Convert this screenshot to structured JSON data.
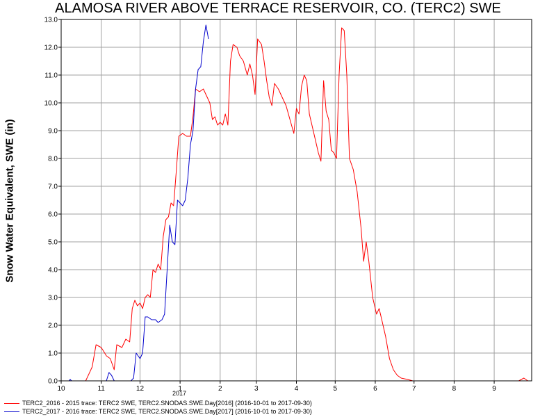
{
  "chart_data": {
    "type": "line",
    "title": "ALAMOSA RIVER ABOVE TERRACE RESERVOIR, CO. (TERC2) SWE",
    "ylabel": "Snow Water Equivalent, SWE (in)",
    "xlabel": "",
    "ylim": [
      0,
      13
    ],
    "yticks": [
      "0.0",
      "1.0",
      "2.0",
      "3.0",
      "4.0",
      "5.0",
      "6.0",
      "7.0",
      "8.0",
      "9.0",
      "10.0",
      "11.0",
      "12.0",
      "13.0"
    ],
    "xticks": [
      {
        "label": "10",
        "month_index": 0
      },
      {
        "label": "11",
        "month_index": 1
      },
      {
        "label": "12",
        "month_index": 2
      },
      {
        "label": "1",
        "month_index": 3
      },
      {
        "label": "2",
        "month_index": 4
      },
      {
        "label": "3",
        "month_index": 5
      },
      {
        "label": "4",
        "month_index": 6
      },
      {
        "label": "5",
        "month_index": 7
      },
      {
        "label": "6",
        "month_index": 8
      },
      {
        "label": "7",
        "month_index": 9
      },
      {
        "label": "8",
        "month_index": 10
      },
      {
        "label": "9",
        "month_index": 11
      }
    ],
    "year_label": "2017",
    "grid": true,
    "series": [
      {
        "name": "TERC2_2016 - 2015 trace: TERC2 SWE, TERC2.SNODAS.SWE.Day[2016] (2016-10-01 to 2017-09-30)",
        "color": "#ff0000",
        "points": [
          [
            "2016-10-01",
            0
          ],
          [
            "2016-10-20",
            0
          ],
          [
            "2016-10-25",
            0.5
          ],
          [
            "2016-10-28",
            1.3
          ],
          [
            "2016-11-01",
            1.2
          ],
          [
            "2016-11-05",
            0.9
          ],
          [
            "2016-11-08",
            0.8
          ],
          [
            "2016-11-11",
            0.4
          ],
          [
            "2016-11-13",
            1.3
          ],
          [
            "2016-11-17",
            1.2
          ],
          [
            "2016-11-20",
            1.5
          ],
          [
            "2016-11-23",
            1.4
          ],
          [
            "2016-11-25",
            2.6
          ],
          [
            "2016-11-27",
            2.9
          ],
          [
            "2016-11-29",
            2.7
          ],
          [
            "2016-12-01",
            2.8
          ],
          [
            "2016-12-03",
            2.6
          ],
          [
            "2016-12-05",
            3.0
          ],
          [
            "2016-12-07",
            3.1
          ],
          [
            "2016-12-09",
            3.0
          ],
          [
            "2016-12-11",
            4.0
          ],
          [
            "2016-12-13",
            3.9
          ],
          [
            "2016-12-15",
            4.2
          ],
          [
            "2016-12-17",
            4.0
          ],
          [
            "2016-12-19",
            5.2
          ],
          [
            "2016-12-21",
            5.8
          ],
          [
            "2016-12-23",
            5.9
          ],
          [
            "2016-12-25",
            6.4
          ],
          [
            "2016-12-27",
            6.3
          ],
          [
            "2016-12-29",
            7.5
          ],
          [
            "2016-12-31",
            8.8
          ],
          [
            "2017-01-03",
            8.9
          ],
          [
            "2017-01-06",
            8.8
          ],
          [
            "2017-01-09",
            8.8
          ],
          [
            "2017-01-11",
            9.5
          ],
          [
            "2017-01-13",
            10.5
          ],
          [
            "2017-01-16",
            10.4
          ],
          [
            "2017-01-19",
            10.5
          ],
          [
            "2017-01-21",
            10.3
          ],
          [
            "2017-01-24",
            10.0
          ],
          [
            "2017-01-26",
            9.4
          ],
          [
            "2017-01-28",
            9.5
          ],
          [
            "2017-01-30",
            9.2
          ],
          [
            "2017-02-01",
            9.3
          ],
          [
            "2017-02-03",
            9.2
          ],
          [
            "2017-02-05",
            9.6
          ],
          [
            "2017-02-07",
            9.2
          ],
          [
            "2017-02-09",
            11.5
          ],
          [
            "2017-02-11",
            12.1
          ],
          [
            "2017-02-14",
            12.0
          ],
          [
            "2017-02-16",
            11.7
          ],
          [
            "2017-02-19",
            11.5
          ],
          [
            "2017-02-22",
            11.0
          ],
          [
            "2017-02-24",
            11.4
          ],
          [
            "2017-02-26",
            11.0
          ],
          [
            "2017-02-28",
            10.3
          ],
          [
            "2017-03-02",
            12.3
          ],
          [
            "2017-03-05",
            12.1
          ],
          [
            "2017-03-07",
            11.5
          ],
          [
            "2017-03-09",
            10.8
          ],
          [
            "2017-03-11",
            10.2
          ],
          [
            "2017-03-13",
            9.9
          ],
          [
            "2017-03-15",
            10.7
          ],
          [
            "2017-03-18",
            10.5
          ],
          [
            "2017-03-21",
            10.2
          ],
          [
            "2017-03-24",
            9.9
          ],
          [
            "2017-03-27",
            9.4
          ],
          [
            "2017-03-30",
            8.9
          ],
          [
            "2017-04-01",
            9.8
          ],
          [
            "2017-04-03",
            9.6
          ],
          [
            "2017-04-05",
            10.6
          ],
          [
            "2017-04-07",
            11.0
          ],
          [
            "2017-04-09",
            10.8
          ],
          [
            "2017-04-11",
            9.6
          ],
          [
            "2017-04-14",
            9.0
          ],
          [
            "2017-04-16",
            8.6
          ],
          [
            "2017-04-18",
            8.2
          ],
          [
            "2017-04-20",
            7.9
          ],
          [
            "2017-04-22",
            10.8
          ],
          [
            "2017-04-24",
            9.7
          ],
          [
            "2017-04-26",
            9.4
          ],
          [
            "2017-04-28",
            8.3
          ],
          [
            "2017-04-30",
            8.2
          ],
          [
            "2017-05-02",
            8.0
          ],
          [
            "2017-05-04",
            11.0
          ],
          [
            "2017-05-06",
            12.7
          ],
          [
            "2017-05-08",
            12.6
          ],
          [
            "2017-05-10",
            11.0
          ],
          [
            "2017-05-12",
            8.0
          ],
          [
            "2017-05-15",
            7.6
          ],
          [
            "2017-05-18",
            6.8
          ],
          [
            "2017-05-21",
            5.5
          ],
          [
            "2017-05-23",
            4.3
          ],
          [
            "2017-05-25",
            5.0
          ],
          [
            "2017-05-27",
            4.3
          ],
          [
            "2017-05-30",
            3.0
          ],
          [
            "2017-06-02",
            2.4
          ],
          [
            "2017-06-04",
            2.6
          ],
          [
            "2017-06-06",
            2.2
          ],
          [
            "2017-06-09",
            1.6
          ],
          [
            "2017-06-12",
            0.8
          ],
          [
            "2017-06-15",
            0.4
          ],
          [
            "2017-06-18",
            0.2
          ],
          [
            "2017-06-21",
            0.1
          ],
          [
            "2017-06-26",
            0.05
          ],
          [
            "2017-06-30",
            0
          ],
          [
            "2017-09-20",
            0
          ],
          [
            "2017-09-24",
            0.1
          ],
          [
            "2017-09-27",
            0
          ]
        ]
      },
      {
        "name": "TERC2_2017 - 2016 trace: TERC2 SWE, TERC2.SNODAS.SWE.Day[2017] (2016-10-01 to 2017-09-30)",
        "color": "#0000cc",
        "points": [
          [
            "2016-10-01",
            0
          ],
          [
            "2016-10-07",
            0
          ],
          [
            "2016-10-08",
            0.05
          ],
          [
            "2016-10-09",
            0
          ],
          [
            "2016-11-05",
            0
          ],
          [
            "2016-11-07",
            0.3
          ],
          [
            "2016-11-09",
            0.2
          ],
          [
            "2016-11-11",
            0
          ],
          [
            "2016-11-24",
            0
          ],
          [
            "2016-11-26",
            0.1
          ],
          [
            "2016-11-28",
            1.0
          ],
          [
            "2016-12-01",
            0.8
          ],
          [
            "2016-12-03",
            1.0
          ],
          [
            "2016-12-05",
            2.3
          ],
          [
            "2016-12-07",
            2.3
          ],
          [
            "2016-12-10",
            2.2
          ],
          [
            "2016-12-13",
            2.2
          ],
          [
            "2016-12-15",
            2.1
          ],
          [
            "2016-12-18",
            2.2
          ],
          [
            "2016-12-20",
            2.4
          ],
          [
            "2016-12-22",
            4.0
          ],
          [
            "2016-12-24",
            5.6
          ],
          [
            "2016-12-26",
            5.0
          ],
          [
            "2016-12-28",
            4.9
          ],
          [
            "2016-12-30",
            6.5
          ],
          [
            "2017-01-01",
            6.4
          ],
          [
            "2017-01-03",
            6.3
          ],
          [
            "2017-01-05",
            6.5
          ],
          [
            "2017-01-07",
            7.3
          ],
          [
            "2017-01-09",
            8.5
          ],
          [
            "2017-01-11",
            9.0
          ],
          [
            "2017-01-13",
            10.5
          ],
          [
            "2017-01-15",
            11.2
          ],
          [
            "2017-01-17",
            11.3
          ],
          [
            "2017-01-19",
            12.2
          ],
          [
            "2017-01-21",
            12.8
          ],
          [
            "2017-01-23",
            12.3
          ]
        ]
      }
    ]
  }
}
